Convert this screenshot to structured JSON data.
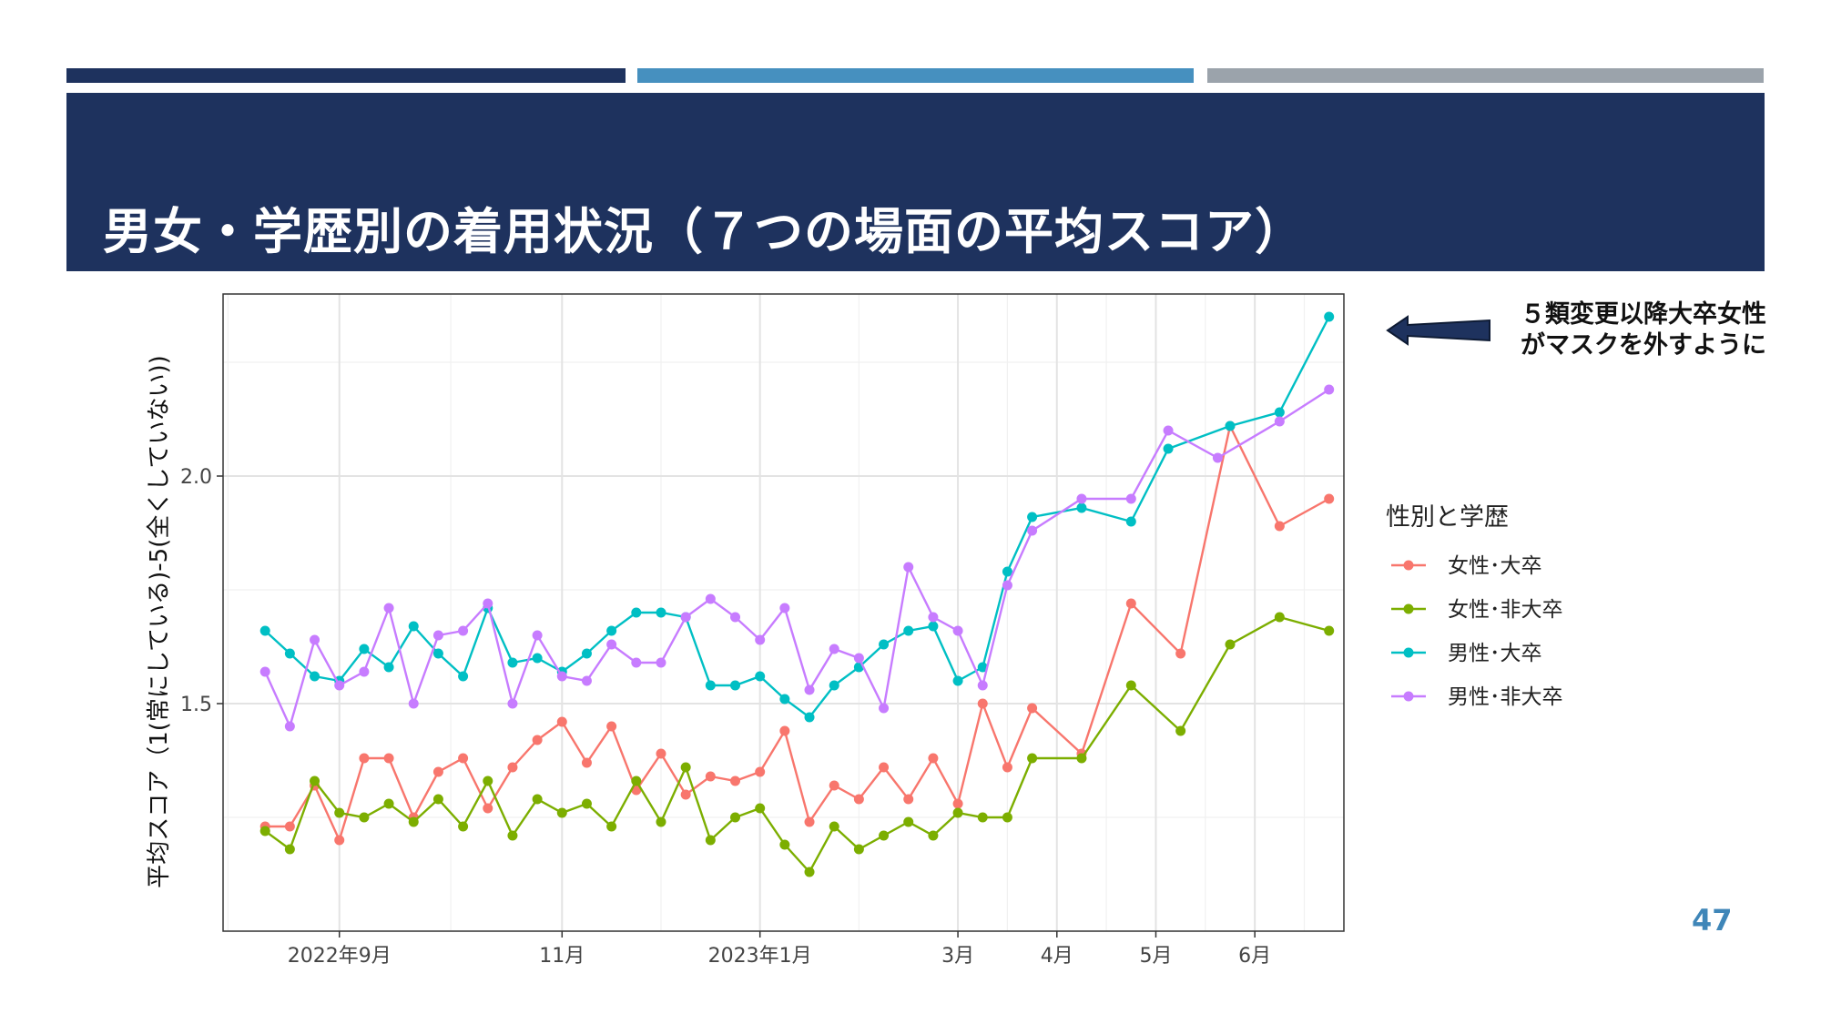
{
  "slide": {
    "title": "男女・学歴別の着用状況（７つの場面の平均スコア）",
    "note_lines": [
      "５類変更以降大卒女性",
      "がマスクを外すように"
    ],
    "page_number": "47",
    "colors": {
      "navy": "#1e325e",
      "blue": "#4690bf",
      "gray": "#9ba3ab",
      "arrow": "#1e325e"
    }
  },
  "chart_data": {
    "type": "line",
    "title": "",
    "xlabel": "",
    "ylabel": "平均スコア（1(常にしている)-5(全くしていない))",
    "ylim": [
      1.0,
      2.4
    ],
    "yticks": [
      1.5,
      2.0
    ],
    "xlim": [
      -1.7,
      43.6
    ],
    "xticks": [
      {
        "x": 3,
        "label": "2022年9月"
      },
      {
        "x": 12,
        "label": "11月"
      },
      {
        "x": 20,
        "label": "2023年1月"
      },
      {
        "x": 28,
        "label": "3月"
      },
      {
        "x": 32,
        "label": "4月"
      },
      {
        "x": 36,
        "label": "5月"
      },
      {
        "x": 40,
        "label": "6月"
      }
    ],
    "legend_title": "性別と学歴",
    "legend_position": "right",
    "grid": true,
    "series": [
      {
        "name": "女性･大卒",
        "color": "#f8766d",
        "points": [
          [
            0,
            1.23
          ],
          [
            1,
            1.23
          ],
          [
            2,
            1.32
          ],
          [
            3,
            1.2
          ],
          [
            4,
            1.38
          ],
          [
            5,
            1.38
          ],
          [
            6,
            1.25
          ],
          [
            7,
            1.35
          ],
          [
            8,
            1.38
          ],
          [
            9,
            1.27
          ],
          [
            10,
            1.36
          ],
          [
            11,
            1.42
          ],
          [
            12,
            1.46
          ],
          [
            13,
            1.37
          ],
          [
            14,
            1.45
          ],
          [
            15,
            1.31
          ],
          [
            16,
            1.39
          ],
          [
            17,
            1.3
          ],
          [
            18,
            1.34
          ],
          [
            19,
            1.33
          ],
          [
            20,
            1.35
          ],
          [
            21,
            1.44
          ],
          [
            22,
            1.24
          ],
          [
            23,
            1.32
          ],
          [
            24,
            1.29
          ],
          [
            25,
            1.36
          ],
          [
            26,
            1.29
          ],
          [
            27,
            1.38
          ],
          [
            28,
            1.28
          ],
          [
            29,
            1.5
          ],
          [
            30,
            1.36
          ],
          [
            31,
            1.49
          ],
          [
            33,
            1.39
          ],
          [
            35,
            1.72
          ],
          [
            37,
            1.61
          ],
          [
            39,
            2.11
          ],
          [
            41,
            1.89
          ],
          [
            43,
            1.95
          ]
        ]
      },
      {
        "name": "女性･非大卒",
        "color": "#7cae00",
        "points": [
          [
            0,
            1.22
          ],
          [
            1,
            1.18
          ],
          [
            2,
            1.33
          ],
          [
            3,
            1.26
          ],
          [
            4,
            1.25
          ],
          [
            5,
            1.28
          ],
          [
            6,
            1.24
          ],
          [
            7,
            1.29
          ],
          [
            8,
            1.23
          ],
          [
            9,
            1.33
          ],
          [
            10,
            1.21
          ],
          [
            11,
            1.29
          ],
          [
            12,
            1.26
          ],
          [
            13,
            1.28
          ],
          [
            14,
            1.23
          ],
          [
            15,
            1.33
          ],
          [
            16,
            1.24
          ],
          [
            17,
            1.36
          ],
          [
            18,
            1.2
          ],
          [
            19,
            1.25
          ],
          [
            20,
            1.27
          ],
          [
            21,
            1.19
          ],
          [
            22,
            1.13
          ],
          [
            23,
            1.23
          ],
          [
            24,
            1.18
          ],
          [
            25,
            1.21
          ],
          [
            26,
            1.24
          ],
          [
            27,
            1.21
          ],
          [
            28,
            1.26
          ],
          [
            29,
            1.25
          ],
          [
            30,
            1.25
          ],
          [
            31,
            1.38
          ],
          [
            33,
            1.38
          ],
          [
            35,
            1.54
          ],
          [
            37,
            1.44
          ],
          [
            39,
            1.63
          ],
          [
            41,
            1.69
          ],
          [
            43,
            1.66
          ]
        ]
      },
      {
        "name": "男性･大卒",
        "color": "#00bfc4",
        "points": [
          [
            0,
            1.66
          ],
          [
            1,
            1.61
          ],
          [
            2,
            1.56
          ],
          [
            3,
            1.55
          ],
          [
            4,
            1.62
          ],
          [
            5,
            1.58
          ],
          [
            6,
            1.67
          ],
          [
            7,
            1.61
          ],
          [
            8,
            1.56
          ],
          [
            9,
            1.71
          ],
          [
            10,
            1.59
          ],
          [
            11,
            1.6
          ],
          [
            12,
            1.57
          ],
          [
            13,
            1.61
          ],
          [
            14,
            1.66
          ],
          [
            15,
            1.7
          ],
          [
            16,
            1.7
          ],
          [
            17,
            1.69
          ],
          [
            18,
            1.54
          ],
          [
            19,
            1.54
          ],
          [
            20,
            1.56
          ],
          [
            21,
            1.51
          ],
          [
            22,
            1.47
          ],
          [
            23,
            1.54
          ],
          [
            24,
            1.58
          ],
          [
            25,
            1.63
          ],
          [
            26,
            1.66
          ],
          [
            27,
            1.67
          ],
          [
            28,
            1.55
          ],
          [
            29,
            1.58
          ],
          [
            30,
            1.79
          ],
          [
            31,
            1.91
          ],
          [
            33,
            1.93
          ],
          [
            35,
            1.9
          ],
          [
            36.5,
            2.06
          ],
          [
            39,
            2.11
          ],
          [
            41,
            2.14
          ],
          [
            43,
            2.35
          ]
        ]
      },
      {
        "name": "男性･非大卒",
        "color": "#c77cff",
        "points": [
          [
            0,
            1.57
          ],
          [
            1,
            1.45
          ],
          [
            2,
            1.64
          ],
          [
            3,
            1.54
          ],
          [
            4,
            1.57
          ],
          [
            5,
            1.71
          ],
          [
            6,
            1.5
          ],
          [
            7,
            1.65
          ],
          [
            8,
            1.66
          ],
          [
            9,
            1.72
          ],
          [
            10,
            1.5
          ],
          [
            11,
            1.65
          ],
          [
            12,
            1.56
          ],
          [
            13,
            1.55
          ],
          [
            14,
            1.63
          ],
          [
            15,
            1.59
          ],
          [
            16,
            1.59
          ],
          [
            17,
            1.69
          ],
          [
            18,
            1.73
          ],
          [
            19,
            1.69
          ],
          [
            20,
            1.64
          ],
          [
            21,
            1.71
          ],
          [
            22,
            1.53
          ],
          [
            23,
            1.62
          ],
          [
            24,
            1.6
          ],
          [
            25,
            1.49
          ],
          [
            26,
            1.8
          ],
          [
            27,
            1.69
          ],
          [
            28,
            1.66
          ],
          [
            29,
            1.54
          ],
          [
            30,
            1.76
          ],
          [
            31,
            1.88
          ],
          [
            33,
            1.95
          ],
          [
            35,
            1.95
          ],
          [
            36.5,
            2.1
          ],
          [
            38.5,
            2.04
          ],
          [
            41,
            2.12
          ],
          [
            43,
            2.19
          ]
        ]
      }
    ]
  }
}
